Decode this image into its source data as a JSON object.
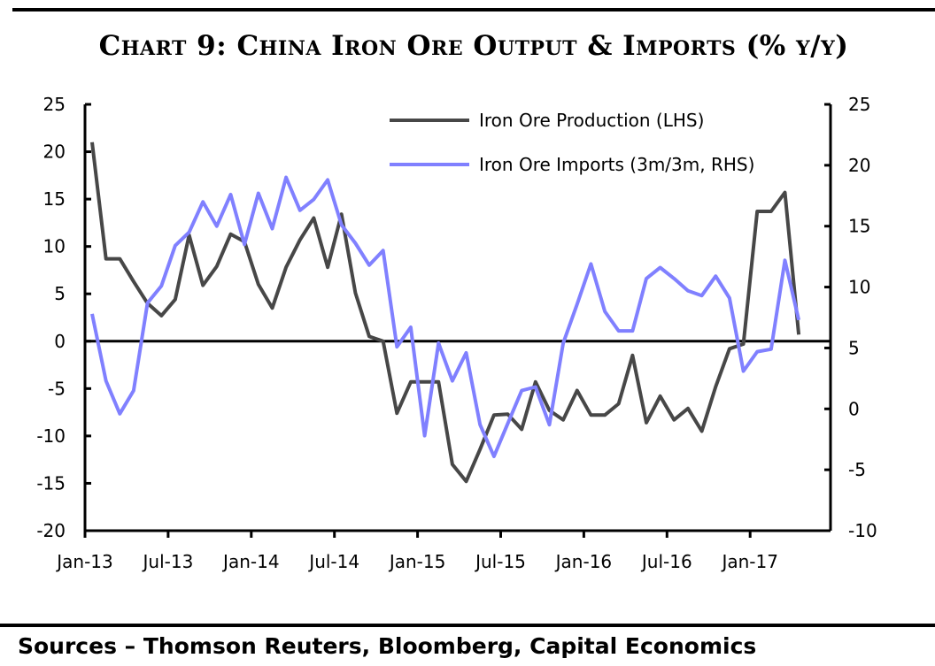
{
  "chart_data": {
    "type": "line",
    "title": "Chart 9: China Iron Ore Output & Imports (% y/y)",
    "source": "Sources – Thomson Reuters, Bloomberg, Capital Economics",
    "x_start": "Jan-13",
    "x_tick_labels": [
      "Jan-13",
      "Jul-13",
      "Jan-14",
      "Jul-14",
      "Jan-15",
      "Jul-15",
      "Jan-16",
      "Jul-16",
      "Jan-17"
    ],
    "y_left": {
      "range": [
        -20,
        25
      ],
      "ticks": [
        25,
        20,
        15,
        10,
        5,
        0,
        -5,
        -10,
        -15,
        -20
      ]
    },
    "y_right": {
      "range": [
        -10,
        25
      ],
      "ticks": [
        25,
        20,
        15,
        10,
        5,
        0,
        -5,
        -10
      ]
    },
    "grid": false,
    "legend_placement": "top-right",
    "series": [
      {
        "name": "Iron Ore Production (LHS)",
        "axis": "left",
        "color": "#474747",
        "values": [
          21.0,
          8.7,
          8.7,
          6.3,
          4.0,
          2.7,
          4.4,
          11.2,
          5.9,
          7.9,
          11.3,
          10.5,
          6.0,
          3.5,
          7.8,
          10.7,
          13.0,
          7.8,
          13.4,
          5.1,
          0.5,
          0.0,
          -7.6,
          -4.3,
          -4.3,
          -4.3,
          -13.0,
          -14.8,
          -11.4,
          -7.8,
          -7.7,
          -9.3,
          -4.3,
          -7.3,
          -8.3,
          -5.2,
          -7.8,
          -7.8,
          -6.6,
          -1.5,
          -8.6,
          -5.8,
          -8.3,
          -7.1,
          -9.5,
          -4.8,
          -0.8,
          -0.3,
          13.7,
          13.7,
          15.7,
          0.7
        ]
      },
      {
        "name": "Iron Ore Imports (3m/3m, RHS)",
        "axis": "right",
        "color": "#8080ff",
        "values": [
          7.8,
          2.3,
          -0.4,
          1.5,
          8.7,
          10.1,
          13.4,
          14.5,
          17.0,
          15.0,
          17.6,
          13.5,
          17.7,
          14.8,
          19.0,
          16.3,
          17.2,
          18.8,
          15.1,
          13.6,
          11.8,
          13.0,
          5.1,
          6.7,
          -2.2,
          5.4,
          2.3,
          4.6,
          -1.3,
          -3.9,
          -1.2,
          1.5,
          1.8,
          -1.3,
          5.4,
          8.6,
          11.9,
          8.0,
          6.4,
          6.4,
          10.7,
          11.6,
          10.7,
          9.7,
          9.3,
          10.9,
          9.1,
          3.1,
          4.7,
          4.9,
          12.2,
          7.3
        ]
      }
    ]
  }
}
